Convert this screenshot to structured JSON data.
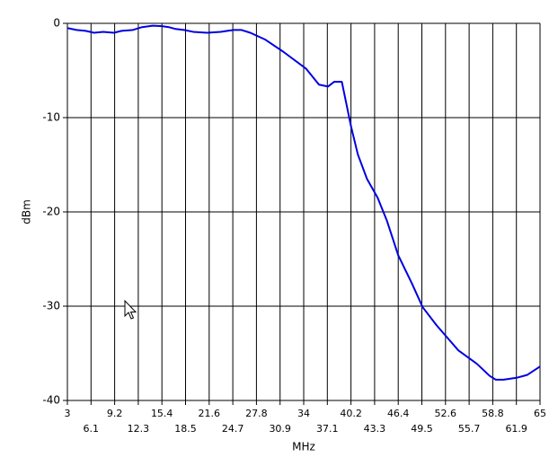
{
  "chart_data": {
    "type": "line",
    "x_label": "MHz",
    "y_label": "dBm",
    "x": [
      3.0,
      4.2,
      5.4,
      6.5,
      7.7,
      9.1,
      10.1,
      11.6,
      12.8,
      14.2,
      15.4,
      16.3,
      17.2,
      18.3,
      19.5,
      21.3,
      23.1,
      24.8,
      25.8,
      27.0,
      28.9,
      31.3,
      34.3,
      36.0,
      37.2,
      38.0,
      39.0,
      40.2,
      41.1,
      42.3,
      43.7,
      44.9,
      46.4,
      48.2,
      49.6,
      51.4,
      54.3,
      56.7,
      58.4,
      59.2,
      60.2,
      61.9,
      63.3,
      65.0
    ],
    "series": [
      {
        "color": "#0000e0",
        "values": [
          -0.5,
          -0.7,
          -0.8,
          -1.0,
          -0.9,
          -1.0,
          -0.8,
          -0.7,
          -0.4,
          -0.25,
          -0.3,
          -0.4,
          -0.6,
          -0.7,
          -0.9,
          -1.0,
          -0.9,
          -0.7,
          -0.7,
          -1.0,
          -1.7,
          -3.0,
          -4.8,
          -6.5,
          -6.7,
          -6.2,
          -6.2,
          -10.9,
          -13.9,
          -16.5,
          -18.5,
          -20.9,
          -24.6,
          -27.6,
          -30.1,
          -32.0,
          -34.7,
          -36.1,
          -37.4,
          -37.8,
          -37.8,
          -37.6,
          -37.3,
          -36.4
        ]
      }
    ],
    "xlim": [
      3,
      65
    ],
    "xticks": [
      3,
      6.1,
      9.2,
      12.3,
      15.4,
      18.5,
      21.6,
      24.7,
      27.8,
      30.9,
      34,
      37.1,
      40.2,
      43.3,
      46.4,
      49.5,
      52.6,
      55.7,
      58.8,
      61.9,
      65
    ],
    "ylim": [
      -40,
      0
    ],
    "yticks": [
      0,
      -10,
      -20,
      -30,
      -40
    ],
    "grid": true
  }
}
